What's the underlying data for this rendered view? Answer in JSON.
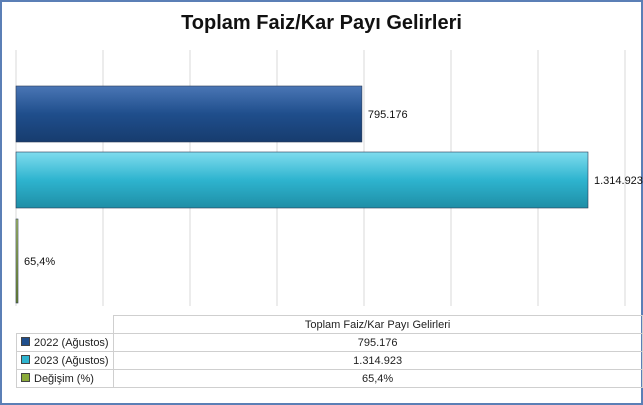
{
  "chart_data": {
    "type": "bar",
    "orientation": "horizontal",
    "title": "Toplam Faiz/Kar Payı Gelirleri",
    "xlim": [
      0,
      1400000
    ],
    "grid": true,
    "category": "Toplam Faiz/Kar Payı Gelirleri",
    "series": [
      {
        "name": "2022 (Ağustos)",
        "value": 795176,
        "label": "795.176",
        "color": "#1f4e8c"
      },
      {
        "name": "2023 (Ağustos)",
        "value": 1314923,
        "label": "1.314.923",
        "color": "#2eb4cf"
      },
      {
        "name": "Değişim (%)",
        "value": 65.4,
        "label": "65,4%",
        "color": "#8aaa3a"
      }
    ]
  }
}
